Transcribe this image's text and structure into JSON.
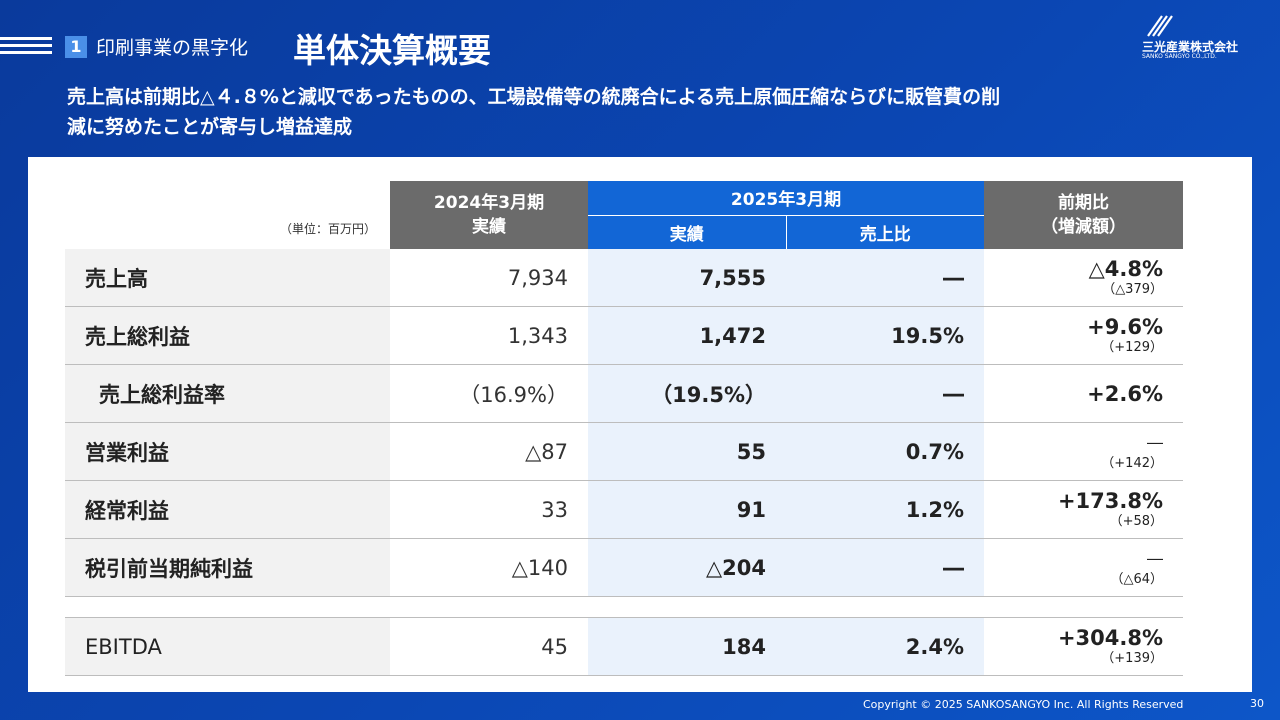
{
  "header": {
    "section_number": "1",
    "section_title": "印刷事業の黒字化",
    "page_title": "単体決算概要",
    "company_name": "三光産業株式会社",
    "company_name_en": "SANKO SANGYO CO.,LTD."
  },
  "lead": {
    "line1": "売上高は前期比△４.８%と減収であったものの、工場設備等の統廃合による売上原価圧縮ならびに販管費の削",
    "line2": "減に努めたことが寄与し増益達成"
  },
  "table": {
    "unit_label": "（単位：百万円）",
    "header_prev_line1": "2024年3月期",
    "header_prev_line2": "実績",
    "header_cur": "2025年3月期",
    "header_cur_actual": "実績",
    "header_cur_ratio": "売上比",
    "header_change_line1": "前期比",
    "header_change_line2": "（増減額）",
    "rows": [
      {
        "label": "売上高",
        "prev": "7,934",
        "cur": "7,555",
        "ratio": "―",
        "change": "△4.8%",
        "change_sub": "（△379）"
      },
      {
        "label": "売上総利益",
        "prev": "1,343",
        "cur": "1,472",
        "ratio": "19.5%",
        "change": "+9.6%",
        "change_sub": "（+129）"
      },
      {
        "label": "売上総利益率",
        "prev": "（16.9%）",
        "cur": "（19.5%）",
        "ratio": "―",
        "change": "+2.6%",
        "change_sub": ""
      },
      {
        "label": "営業利益",
        "prev": "△87",
        "cur": "55",
        "ratio": "0.7%",
        "change": "―",
        "change_sub": "（+142）"
      },
      {
        "label": "経常利益",
        "prev": "33",
        "cur": "91",
        "ratio": "1.2%",
        "change": "+173.8%",
        "change_sub": "（+58）"
      },
      {
        "label": "税引前当期純利益",
        "prev": "△140",
        "cur": "△204",
        "ratio": "―",
        "change": "―",
        "change_sub": "（△64）"
      },
      {
        "label": "EBITDA",
        "prev": "45",
        "cur": "184",
        "ratio": "2.4%",
        "change": "+304.8%",
        "change_sub": "（+139）"
      }
    ]
  },
  "footer": {
    "copyright": "Copyright © 2025  SANKOSANGYO Inc. All Rights Reserved",
    "page_number": "30"
  }
}
